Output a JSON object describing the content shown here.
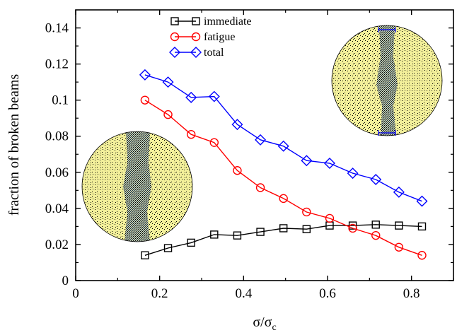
{
  "chart_data": {
    "type": "line",
    "xlabel": "σ/σ",
    "xlabel_subscript": "c",
    "ylabel": "fraction of broken beams",
    "xlim": [
      0,
      0.9
    ],
    "ylim": [
      0,
      0.15
    ],
    "xticks": [
      0,
      0.2,
      0.4,
      0.6,
      0.8
    ],
    "xtick_labels": [
      "0",
      "0.2",
      "0.4",
      "0.6",
      "0.8"
    ],
    "yticks": [
      0,
      0.02,
      0.04,
      0.06,
      0.08,
      0.1,
      0.12,
      0.14
    ],
    "ytick_labels": [
      "0",
      "0.02",
      "0.04",
      "0.06",
      "0.08",
      "0.1",
      "0.12",
      "0.14"
    ],
    "grid": false,
    "legend_position": "top-center",
    "x": [
      0.165,
      0.22,
      0.275,
      0.33,
      0.385,
      0.44,
      0.495,
      0.55,
      0.605,
      0.66,
      0.715,
      0.77,
      0.825
    ],
    "series": [
      {
        "name": "immediate",
        "marker": "square",
        "color": "#000000",
        "values": [
          0.014,
          0.018,
          0.021,
          0.0255,
          0.025,
          0.027,
          0.029,
          0.0285,
          0.0305,
          0.0305,
          0.031,
          0.0305,
          0.03
        ]
      },
      {
        "name": "fatigue",
        "marker": "circle",
        "color": "#ff0000",
        "values": [
          0.1,
          0.092,
          0.081,
          0.0765,
          0.061,
          0.0515,
          0.0455,
          0.038,
          0.0345,
          0.029,
          0.025,
          0.0185,
          0.014
        ]
      },
      {
        "name": "total",
        "marker": "diamond",
        "color": "#0000ff",
        "values": [
          0.114,
          0.11,
          0.1015,
          0.102,
          0.0865,
          0.078,
          0.0745,
          0.0665,
          0.065,
          0.0595,
          0.056,
          0.049,
          0.044
        ]
      }
    ],
    "insets": [
      {
        "name": "inset-left",
        "description_icon": "fracture-disc-vertical-crack"
      },
      {
        "name": "inset-right",
        "description_icon": "fracture-disc-vertical-crack-with-markers"
      }
    ]
  }
}
